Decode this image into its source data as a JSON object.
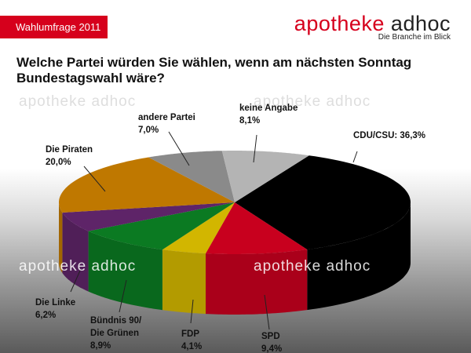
{
  "badge": "Wahlumfrage 2011",
  "brand": {
    "name_part1": "apotheke",
    "name_part2": "adhoc",
    "tagline": "Die Branche im Blick"
  },
  "question": "Welche Partei würden Sie wählen, wenn am nächsten Sonntag Bundestagswahl wäre?",
  "watermark": "apotheke adhoc",
  "chart_data": {
    "type": "pie",
    "style": "3d",
    "title": "Welche Partei würden Sie wählen, wenn am nächsten Sonntag Bundestagswahl wäre?",
    "slices": [
      {
        "name": "CDU/CSU",
        "value": 36.3,
        "label": "CDU/CSU: 36,3%",
        "line1": "CDU/CSU: 36,3%",
        "line2": "",
        "color": "#000000"
      },
      {
        "name": "SPD",
        "value": 9.4,
        "line1": "SPD",
        "line2": "9,4%",
        "color": "#c8001e"
      },
      {
        "name": "FDP",
        "value": 4.1,
        "line1": "FDP",
        "line2": "4,1%",
        "color": "#d2b600"
      },
      {
        "name": "Bündnis 90/Die Grünen",
        "value": 8.9,
        "line1": "Bündnis 90/",
        "line1b": "Die Grünen",
        "line2": "8,9%",
        "color": "#0b7a22"
      },
      {
        "name": "Die Linke",
        "value": 6.2,
        "line1": "Die Linke",
        "line2": "6,2%",
        "color": "#5e2468"
      },
      {
        "name": "Die Piraten",
        "value": 20.0,
        "line1": "Die Piraten",
        "line2": "20,0%",
        "color": "#bf7800"
      },
      {
        "name": "andere Partei",
        "value": 7.0,
        "line1": "andere Partei",
        "line2": "7,0%",
        "color": "#8a8a8a"
      },
      {
        "name": "keine Angabe",
        "value": 8.1,
        "line1": "keine Angabe",
        "line2": "8,1%",
        "color": "#b4b4b4"
      }
    ]
  }
}
